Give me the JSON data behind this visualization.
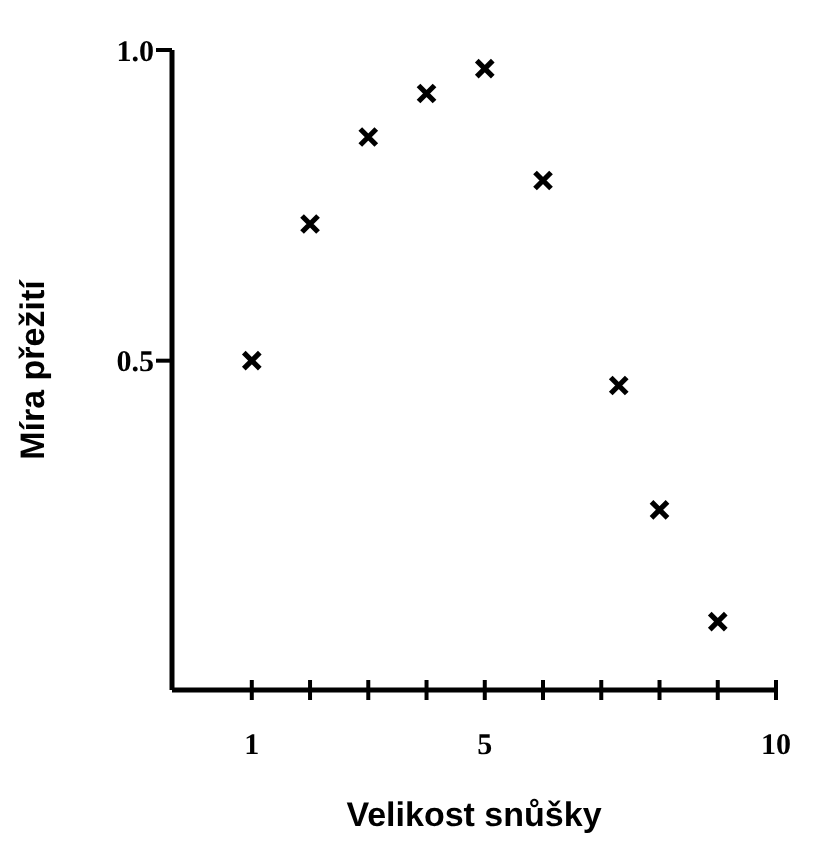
{
  "chart_data": {
    "type": "scatter",
    "xlabel": "Velikost snůšky",
    "ylabel": "Míra přežití",
    "x": [
      1,
      2,
      3,
      4,
      5,
      6,
      7.3,
      8,
      9
    ],
    "values": [
      0.5,
      0.72,
      0.86,
      0.93,
      0.97,
      0.79,
      0.46,
      0.26,
      0.08
    ],
    "color": "#000000",
    "marker": "cross",
    "xlim": [
      -0.37,
      10
    ],
    "ylim": [
      -0.03,
      1
    ],
    "xticks": [
      1,
      {
        "value": 2,
        "label": null
      },
      {
        "value": 3,
        "label": null
      },
      {
        "value": 4,
        "label": null
      },
      5,
      {
        "value": 6,
        "label": null
      },
      {
        "value": 7,
        "label": null
      },
      {
        "value": 8,
        "label": null
      },
      {
        "value": 9,
        "label": null
      },
      10
    ],
    "yticks": [
      {
        "value": 0.5,
        "label": "0.5"
      },
      {
        "value": 1,
        "label": "1.0"
      }
    ],
    "grid": false
  }
}
